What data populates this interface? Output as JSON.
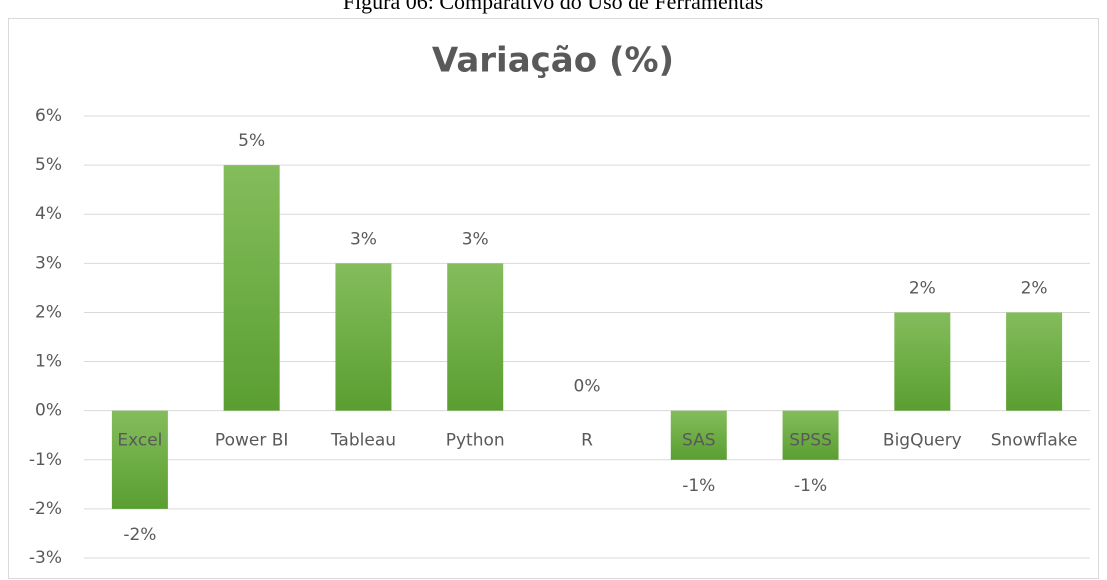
{
  "caption": "Figura 06: Comparativo do Uso de Ferramentas",
  "chart_data": {
    "type": "bar",
    "title": "Variação (%)",
    "categories": [
      "Excel",
      "Power BI",
      "Tableau",
      "Python",
      "R",
      "SAS",
      "SPSS",
      "BigQuery",
      "Snowflake"
    ],
    "values": [
      -2,
      5,
      3,
      3,
      0,
      -1,
      -1,
      2,
      2
    ],
    "value_labels": [
      "-2%",
      "5%",
      "3%",
      "3%",
      "0%",
      "-1%",
      "-1%",
      "2%",
      "2%"
    ],
    "color": "#70ad47",
    "ylim": [
      -3,
      6
    ],
    "yticks": [
      {
        "value": -3,
        "label": "-3%"
      },
      {
        "value": -2,
        "label": "-2%"
      },
      {
        "value": -1,
        "label": "-1%"
      },
      {
        "value": 0,
        "label": "0%"
      },
      {
        "value": 1,
        "label": "1%"
      },
      {
        "value": 2,
        "label": "2%"
      },
      {
        "value": 3,
        "label": "3%"
      },
      {
        "value": 4,
        "label": "4%"
      },
      {
        "value": 5,
        "label": "5%"
      },
      {
        "value": 6,
        "label": "6%"
      }
    ],
    "grid": true
  }
}
